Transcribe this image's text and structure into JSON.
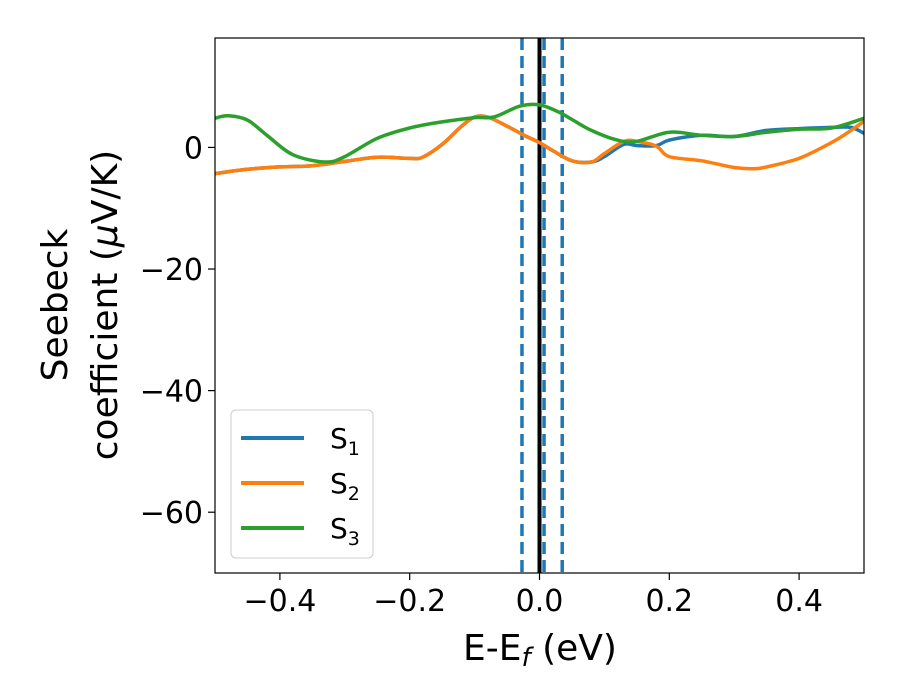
{
  "chart_data": {
    "type": "line",
    "xlabel": {
      "base": "E-E",
      "sub": "f",
      "rest": " (eV)"
    },
    "ylabel": {
      "line1": "Seebeck",
      "line2_prefix": "coefficient  (",
      "line2_mu": "μ",
      "line2_suffix": "V/K)"
    },
    "xlim": [
      -0.5,
      0.5
    ],
    "ylim": [
      -70,
      18
    ],
    "xticks": [
      -0.4,
      -0.2,
      0.0,
      0.2,
      0.4
    ],
    "xtick_labels": [
      "−0.4",
      "−0.2",
      "0.0",
      "0.2",
      "0.4"
    ],
    "yticks": [
      0,
      -20,
      -40,
      -60
    ],
    "ytick_labels": [
      "0",
      "−20",
      "−40",
      "−60"
    ],
    "grid": false,
    "legend_position": "lower-left",
    "vlines": [
      {
        "x": 0.0,
        "style": "solid",
        "color": "#000000"
      },
      {
        "x": -0.027,
        "style": "dashed",
        "color": "#1f77b4"
      },
      {
        "x": 0.007,
        "style": "dashed",
        "color": "#1f77b4"
      },
      {
        "x": 0.035,
        "style": "dashed",
        "color": "#1f77b4"
      }
    ],
    "series": [
      {
        "name": "S",
        "sub": "1",
        "color": "#1f77b4",
        "x": [
          -0.5,
          -0.45,
          -0.4,
          -0.35,
          -0.3,
          -0.25,
          -0.2,
          -0.18,
          -0.15,
          -0.12,
          -0.1,
          -0.08,
          -0.05,
          -0.02,
          0.0,
          0.02,
          0.05,
          0.08,
          0.1,
          0.13,
          0.15,
          0.18,
          0.2,
          0.25,
          0.3,
          0.35,
          0.4,
          0.45,
          0.48,
          0.5
        ],
        "y": [
          -4.3,
          -3.6,
          -3.2,
          -3.0,
          -2.3,
          -1.6,
          -1.8,
          -1.6,
          0.5,
          3.5,
          5.0,
          5.0,
          3.5,
          1.8,
          0.8,
          -0.5,
          -2.2,
          -2.4,
          -1.5,
          0.5,
          0.3,
          0.3,
          1.2,
          2.0,
          1.8,
          2.8,
          3.1,
          3.3,
          3.3,
          2.3
        ]
      },
      {
        "name": "S",
        "sub": "2",
        "color": "#ff7f0e",
        "x": [
          -0.5,
          -0.45,
          -0.4,
          -0.35,
          -0.3,
          -0.25,
          -0.2,
          -0.18,
          -0.15,
          -0.12,
          -0.1,
          -0.08,
          -0.05,
          -0.02,
          0.0,
          0.02,
          0.05,
          0.08,
          0.1,
          0.13,
          0.15,
          0.18,
          0.2,
          0.25,
          0.3,
          0.33,
          0.35,
          0.4,
          0.45,
          0.48,
          0.5
        ],
        "y": [
          -4.3,
          -3.6,
          -3.2,
          -3.0,
          -2.3,
          -1.6,
          -1.8,
          -1.6,
          0.5,
          3.5,
          5.0,
          5.0,
          3.5,
          1.8,
          0.8,
          -0.5,
          -2.2,
          -2.4,
          -1.0,
          1.0,
          1.0,
          0.2,
          -1.5,
          -2.2,
          -3.3,
          -3.5,
          -3.2,
          -1.8,
          0.8,
          2.8,
          4.3
        ]
      },
      {
        "name": "S",
        "sub": "3",
        "color": "#2ca02c",
        "x": [
          -0.5,
          -0.48,
          -0.45,
          -0.42,
          -0.38,
          -0.33,
          -0.3,
          -0.25,
          -0.2,
          -0.15,
          -0.1,
          -0.07,
          -0.03,
          0.0,
          0.03,
          0.05,
          0.08,
          0.12,
          0.15,
          0.2,
          0.25,
          0.3,
          0.35,
          0.4,
          0.45,
          0.5
        ],
        "y": [
          4.8,
          5.2,
          4.5,
          2.0,
          -1.2,
          -2.4,
          -1.5,
          1.5,
          3.2,
          4.2,
          4.9,
          5.0,
          6.8,
          7.0,
          5.8,
          4.6,
          2.8,
          1.2,
          1.0,
          2.5,
          2.0,
          1.8,
          2.5,
          3.0,
          3.2,
          4.8
        ]
      }
    ]
  }
}
